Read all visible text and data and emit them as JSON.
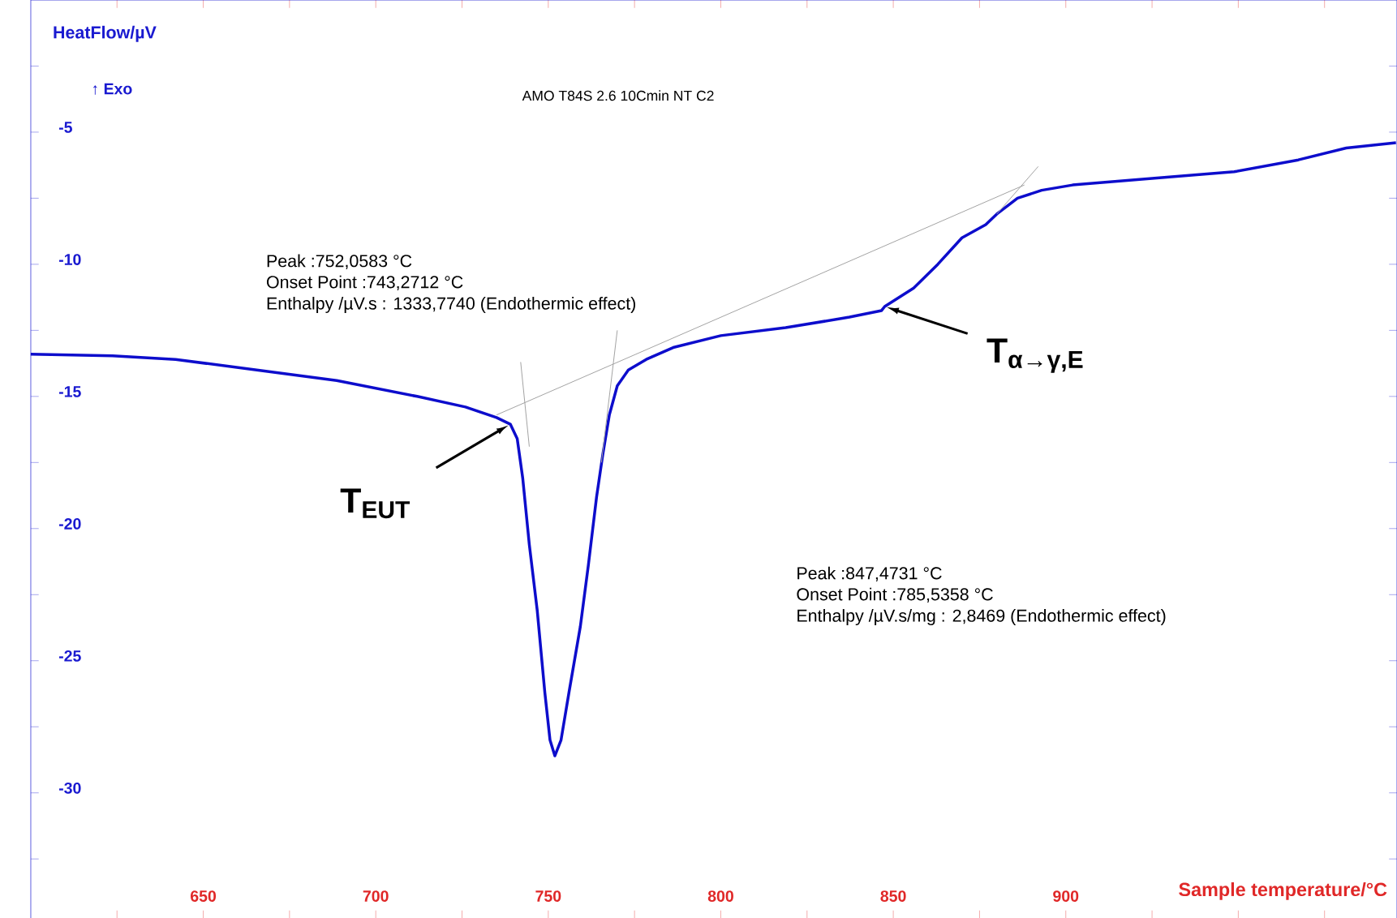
{
  "chart_data": {
    "type": "line",
    "title": "AMO T84S 2.6 10Cmin NT C2",
    "xlabel": "Sample temperature/°C",
    "ylabel": "HeatFlow/µV",
    "xlim": [
      600,
      996
    ],
    "ylim": [
      -34.75,
      0
    ],
    "xticks": [
      {
        "value": 625,
        "label": null
      },
      650,
      {
        "value": 675,
        "label": null
      },
      700,
      {
        "value": 725,
        "label": null
      },
      750,
      {
        "value": 775,
        "label": null
      },
      800,
      {
        "value": 825,
        "label": null
      },
      850,
      {
        "value": 875,
        "label": null
      },
      900,
      {
        "value": 925,
        "label": null
      },
      {
        "value": 950,
        "label": null
      },
      {
        "value": 975,
        "label": null
      }
    ],
    "yticks": [
      {
        "value": -32.5,
        "label": null
      },
      -30,
      {
        "value": -27.5,
        "label": null
      },
      -25,
      {
        "value": -22.5,
        "label": null
      },
      -20,
      {
        "value": -17.5,
        "label": null
      },
      -15,
      {
        "value": -12.5,
        "label": null
      },
      -10,
      {
        "value": -7.5,
        "label": null
      },
      -5,
      {
        "value": -2.5,
        "label": null
      }
    ],
    "series": [
      {
        "color": "#0d0dcc",
        "x": [
          600,
          623.7,
          642,
          665.5,
          688.7,
          712,
          726,
          735,
          739,
          741,
          742.6,
          744.5,
          746.8,
          749,
          750.5,
          751.9,
          753.7,
          756,
          759.3,
          761.6,
          764,
          765.8,
          767.7,
          770,
          773.2,
          778.4,
          786.2,
          800,
          818.8,
          837.3,
          846.6,
          847.5,
          855.9,
          862.9,
          869.9,
          876.8,
          880,
          886,
          893,
          902,
          930,
          948.8,
          967.4,
          981.3,
          995.7
        ],
        "values": [
          -13.4,
          -13.46,
          -13.6,
          -14.0,
          -14.4,
          -15.0,
          -15.4,
          -15.8,
          -16.05,
          -16.6,
          -18.1,
          -20.6,
          -23.1,
          -26.2,
          -28.0,
          -28.6,
          -28.0,
          -26.2,
          -23.7,
          -21.4,
          -18.8,
          -17.2,
          -15.7,
          -14.6,
          -14.0,
          -13.6,
          -13.15,
          -12.7,
          -12.4,
          -12.0,
          -11.75,
          -11.6,
          -10.9,
          -10.0,
          -9.0,
          -8.5,
          -8.1,
          -7.5,
          -7.2,
          -7.0,
          -6.7,
          -6.5,
          -6.05,
          -5.6,
          -5.4
        ]
      },
      {
        "color": "#a0a0a0",
        "x": [
          735,
          888
        ],
        "values": [
          -15.7,
          -7.0
        ]
      },
      {
        "color": "#a0a0a0",
        "x": [
          742,
          744.5
        ],
        "values": [
          -13.7,
          -16.9
        ]
      },
      {
        "color": "#a0a0a0",
        "x": [
          770,
          765.4
        ],
        "values": [
          -12.5,
          -17.5
        ]
      },
      {
        "color": "#a0a0a0",
        "x": [
          880,
          892
        ],
        "values": [
          -8.1,
          -6.3
        ]
      }
    ],
    "annotations": [
      "Peak :752,0583 °C",
      "Onset Point :743,2712 °C",
      "Enthalpy /µV.s : 1333,7740 (Endothermic effect)",
      "Peak :847,4731 °C",
      "Onset Point :785,5358 °C",
      "Enthalpy /µV.s/mg : 2,8469 (Endothermic effect)",
      "↑ Exo",
      {
        "text": "T$_{EUT}$",
        "x": 739,
        "y": -16.05
      },
      {
        "text": "T$_{α→γ,E}$",
        "x": 847.5,
        "y": -11.6
      }
    ]
  }
}
